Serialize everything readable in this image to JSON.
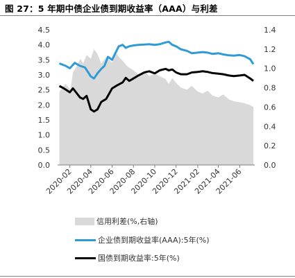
{
  "title": "图 27：5 年期中债企业债到期收益率（AAA）与利差",
  "chart_data": {
    "type": "line",
    "x_ticks": [
      "2020-02",
      "2020-04",
      "2020-06",
      "2020-08",
      "2020-10",
      "2020-12",
      "2021-02",
      "2021-04",
      "2021-06"
    ],
    "y_left": {
      "ylim": [
        0.0,
        4.5
      ],
      "ticks": [
        "0.0",
        "0.5",
        "1.0",
        "1.5",
        "2.0",
        "2.5",
        "3.0",
        "3.5",
        "4.0",
        "4.5"
      ]
    },
    "y_right": {
      "ylim": [
        0.0,
        1.4
      ],
      "ticks": [
        "0.0",
        "0.2",
        "0.4",
        "0.6",
        "0.8",
        "1.0",
        "1.2",
        "1.4"
      ]
    },
    "series": [
      {
        "name": "信用利差(%,右轴)",
        "kind": "area",
        "axis": "right",
        "color": "#d9d9d9",
        "points": [
          [
            "2020-01-02",
            0.76
          ],
          [
            "2020-01-20",
            0.84
          ],
          [
            "2020-02-03",
            0.78
          ],
          [
            "2020-02-10",
            0.96
          ],
          [
            "2020-02-20",
            1.02
          ],
          [
            "2020-03-02",
            1.1
          ],
          [
            "2020-03-10",
            1.05
          ],
          [
            "2020-03-20",
            1.14
          ],
          [
            "2020-04-01",
            1.1
          ],
          [
            "2020-04-10",
            1.2
          ],
          [
            "2020-04-20",
            1.15
          ],
          [
            "2020-05-01",
            1.05
          ],
          [
            "2020-05-15",
            1.12
          ],
          [
            "2020-06-01",
            1.06
          ],
          [
            "2020-06-10",
            1.18
          ],
          [
            "2020-06-20",
            1.12
          ],
          [
            "2020-07-01",
            1.08
          ],
          [
            "2020-07-15",
            1.02
          ],
          [
            "2020-08-01",
            0.98
          ],
          [
            "2020-08-15",
            0.94
          ],
          [
            "2020-09-01",
            0.97
          ],
          [
            "2020-09-15",
            0.92
          ],
          [
            "2020-10-01",
            0.95
          ],
          [
            "2020-10-15",
            0.92
          ],
          [
            "2020-11-01",
            0.89
          ],
          [
            "2020-11-10",
            0.84
          ],
          [
            "2020-11-20",
            0.9
          ],
          [
            "2020-12-01",
            0.85
          ],
          [
            "2020-12-15",
            0.8
          ],
          [
            "2021-01-01",
            0.78
          ],
          [
            "2021-01-15",
            0.82
          ],
          [
            "2021-02-01",
            0.76
          ],
          [
            "2021-02-15",
            0.74
          ],
          [
            "2021-03-01",
            0.77
          ],
          [
            "2021-03-15",
            0.72
          ],
          [
            "2021-04-01",
            0.7
          ],
          [
            "2021-04-15",
            0.73
          ],
          [
            "2021-05-01",
            0.68
          ],
          [
            "2021-05-15",
            0.66
          ],
          [
            "2021-06-01",
            0.65
          ],
          [
            "2021-06-15",
            0.64
          ],
          [
            "2021-07-01",
            0.62
          ],
          [
            "2021-07-10",
            0.6
          ]
        ]
      },
      {
        "name": "企业债到期收益率(AAA):5年(%)",
        "kind": "line",
        "axis": "left",
        "color": "#2e9bd6",
        "points": [
          [
            "2020-01-02",
            3.38
          ],
          [
            "2020-01-20",
            3.3
          ],
          [
            "2020-02-01",
            3.22
          ],
          [
            "2020-02-15",
            3.4
          ],
          [
            "2020-03-01",
            3.3
          ],
          [
            "2020-03-15",
            3.25
          ],
          [
            "2020-04-01",
            2.95
          ],
          [
            "2020-04-10",
            2.88
          ],
          [
            "2020-04-20",
            3.05
          ],
          [
            "2020-05-01",
            3.2
          ],
          [
            "2020-05-10",
            3.3
          ],
          [
            "2020-05-20",
            3.6
          ],
          [
            "2020-06-01",
            3.5
          ],
          [
            "2020-06-10",
            3.72
          ],
          [
            "2020-06-20",
            3.95
          ],
          [
            "2020-07-01",
            4.0
          ],
          [
            "2020-07-10",
            3.9
          ],
          [
            "2020-07-20",
            3.95
          ],
          [
            "2020-08-01",
            3.98
          ],
          [
            "2020-08-15",
            4.0
          ],
          [
            "2020-09-01",
            4.01
          ],
          [
            "2020-09-15",
            4.02
          ],
          [
            "2020-10-01",
            4.0
          ],
          [
            "2020-10-15",
            4.02
          ],
          [
            "2020-11-01",
            4.08
          ],
          [
            "2020-11-10",
            4.1
          ],
          [
            "2020-11-20",
            4.0
          ],
          [
            "2020-12-01",
            3.95
          ],
          [
            "2020-12-15",
            3.85
          ],
          [
            "2021-01-01",
            3.8
          ],
          [
            "2021-01-15",
            3.72
          ],
          [
            "2021-02-01",
            3.74
          ],
          [
            "2021-02-15",
            3.76
          ],
          [
            "2021-03-01",
            3.74
          ],
          [
            "2021-03-15",
            3.7
          ],
          [
            "2021-04-01",
            3.72
          ],
          [
            "2021-04-15",
            3.68
          ],
          [
            "2021-05-01",
            3.65
          ],
          [
            "2021-05-15",
            3.64
          ],
          [
            "2021-06-01",
            3.66
          ],
          [
            "2021-06-15",
            3.62
          ],
          [
            "2021-07-01",
            3.52
          ],
          [
            "2021-07-10",
            3.36
          ]
        ]
      },
      {
        "name": "国债到期收益率:5年(%)",
        "kind": "line",
        "axis": "left",
        "color": "#000000",
        "points": [
          [
            "2020-01-02",
            2.63
          ],
          [
            "2020-01-15",
            2.55
          ],
          [
            "2020-02-01",
            2.42
          ],
          [
            "2020-02-10",
            2.55
          ],
          [
            "2020-02-20",
            2.4
          ],
          [
            "2020-03-01",
            2.25
          ],
          [
            "2020-03-10",
            2.2
          ],
          [
            "2020-03-20",
            2.3
          ],
          [
            "2020-04-01",
            1.85
          ],
          [
            "2020-04-10",
            1.78
          ],
          [
            "2020-04-20",
            1.85
          ],
          [
            "2020-05-01",
            2.1
          ],
          [
            "2020-05-15",
            2.2
          ],
          [
            "2020-06-01",
            2.55
          ],
          [
            "2020-06-15",
            2.65
          ],
          [
            "2020-07-01",
            2.75
          ],
          [
            "2020-07-10",
            2.9
          ],
          [
            "2020-07-20",
            2.8
          ],
          [
            "2020-08-01",
            2.88
          ],
          [
            "2020-08-15",
            2.98
          ],
          [
            "2020-09-01",
            3.08
          ],
          [
            "2020-09-15",
            3.12
          ],
          [
            "2020-10-01",
            3.05
          ],
          [
            "2020-10-15",
            3.15
          ],
          [
            "2020-11-01",
            3.2
          ],
          [
            "2020-11-10",
            3.15
          ],
          [
            "2020-11-20",
            3.18
          ],
          [
            "2020-12-01",
            3.08
          ],
          [
            "2020-12-15",
            3.02
          ],
          [
            "2021-01-01",
            3.02
          ],
          [
            "2021-01-15",
            3.08
          ],
          [
            "2021-02-01",
            3.1
          ],
          [
            "2021-02-15",
            3.12
          ],
          [
            "2021-03-01",
            3.1
          ],
          [
            "2021-03-15",
            3.06
          ],
          [
            "2021-04-01",
            3.04
          ],
          [
            "2021-04-15",
            3.02
          ],
          [
            "2021-05-01",
            2.98
          ],
          [
            "2021-05-15",
            2.96
          ],
          [
            "2021-06-01",
            2.98
          ],
          [
            "2021-06-15",
            3.0
          ],
          [
            "2021-07-01",
            2.88
          ],
          [
            "2021-07-10",
            2.8
          ]
        ]
      }
    ],
    "grid": false,
    "legend_position": "bottom"
  }
}
